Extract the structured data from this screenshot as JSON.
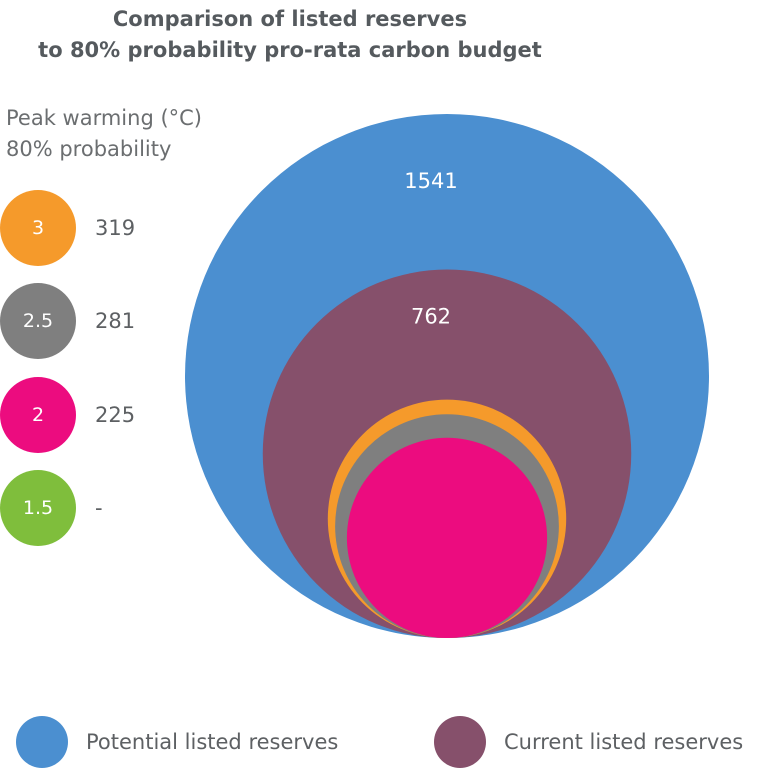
{
  "title": [
    "Comparison of listed reserves",
    "to 80% probability pro-rata carbon budget"
  ],
  "legend_title": [
    "Peak warming (°C)",
    "80% probability"
  ],
  "chart_data": {
    "type": "nested-bubble",
    "title": "Comparison of listed reserves to 80% probability pro-rata carbon budget",
    "series": [
      {
        "name": "Potential listed reserves",
        "value": 1541,
        "label": "1541",
        "color": "#4b8fd0"
      },
      {
        "name": "Current listed reserves",
        "value": 762,
        "label": "762",
        "color": "#86506b"
      }
    ],
    "budgets": [
      {
        "warming": "3",
        "value": 319,
        "label": "319",
        "color": "#f59a2b"
      },
      {
        "warming": "2.5",
        "value": 281,
        "label": "281",
        "color": "#7f7f7f"
      },
      {
        "warming": "2",
        "value": 225,
        "label": "225",
        "color": "#ec0c7f"
      },
      {
        "warming": "1.5",
        "value": null,
        "label": "-",
        "color": "#7fbe3c"
      }
    ]
  },
  "bottom_legend": [
    {
      "label": "Potential listed reserves",
      "color": "#4b8fd0"
    },
    {
      "label": "Current listed reserves",
      "color": "#86506b"
    }
  ]
}
